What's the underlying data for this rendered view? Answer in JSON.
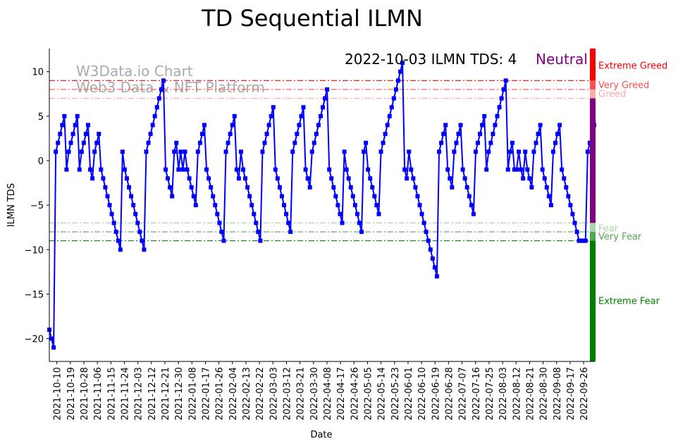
{
  "chart_data": {
    "type": "line",
    "title": "TD Sequential ILMN",
    "xlabel": "Date",
    "ylabel": "ILMN TDS",
    "ylim": [
      -22.6,
      12.6
    ],
    "x_start": "2021-10-05",
    "x_end": "2022-10-03",
    "yticks": [
      10,
      5,
      0,
      -5,
      -10,
      -15,
      -20
    ],
    "xticks": [
      "2021-10-10",
      "2021-10-19",
      "2021-10-28",
      "2021-11-06",
      "2021-11-15",
      "2021-11-24",
      "2021-12-03",
      "2021-12-12",
      "2021-12-21",
      "2021-12-30",
      "2022-01-08",
      "2022-01-17",
      "2022-01-26",
      "2022-02-04",
      "2022-02-13",
      "2022-02-22",
      "2022-03-03",
      "2022-03-12",
      "2022-03-21",
      "2022-03-30",
      "2022-04-08",
      "2022-04-17",
      "2022-04-26",
      "2022-05-05",
      "2022-05-14",
      "2022-05-23",
      "2022-06-01",
      "2022-06-10",
      "2022-06-19",
      "2022-06-28",
      "2022-07-07",
      "2022-07-16",
      "2022-07-25",
      "2022-08-03",
      "2022-08-12",
      "2022-08-21",
      "2022-08-30",
      "2022-09-08",
      "2022-09-17",
      "2022-09-26"
    ],
    "series": [
      {
        "name": "ILMN TDS",
        "color": "#0000ff",
        "values": [
          -19,
          -20,
          -21,
          1,
          2,
          3,
          4,
          5,
          -1,
          1,
          2,
          3,
          4,
          5,
          -1,
          1,
          2,
          3,
          4,
          -1,
          -2,
          1,
          2,
          3,
          -1,
          -2,
          -3,
          -4,
          -5,
          -6,
          -7,
          -8,
          -9,
          -10,
          1,
          -1,
          -2,
          -3,
          -4,
          -5,
          -6,
          -7,
          -8,
          -9,
          -10,
          1,
          2,
          3,
          4,
          5,
          6,
          7,
          8,
          9,
          -1,
          -2,
          -3,
          -4,
          1,
          2,
          -1,
          1,
          -1,
          1,
          -1,
          -2,
          -3,
          -4,
          -5,
          1,
          2,
          3,
          4,
          -1,
          -2,
          -3,
          -4,
          -5,
          -6,
          -7,
          -8,
          -9,
          1,
          2,
          3,
          4,
          5,
          -1,
          -2,
          1,
          -1,
          -2,
          -3,
          -4,
          -5,
          -6,
          -7,
          -8,
          -9,
          1,
          2,
          3,
          4,
          5,
          6,
          -1,
          -2,
          -3,
          -4,
          -5,
          -6,
          -7,
          -8,
          1,
          2,
          3,
          4,
          5,
          6,
          -1,
          -2,
          -3,
          1,
          2,
          3,
          4,
          5,
          6,
          7,
          8,
          -1,
          -2,
          -3,
          -4,
          -5,
          -6,
          -7,
          1,
          -1,
          -2,
          -3,
          -4,
          -5,
          -6,
          -7,
          -8,
          1,
          2,
          -1,
          -2,
          -3,
          -4,
          -5,
          -6,
          1,
          2,
          3,
          4,
          5,
          6,
          7,
          8,
          9,
          10,
          11,
          -1,
          -2,
          1,
          -1,
          -2,
          -3,
          -4,
          -5,
          -6,
          -7,
          -8,
          -9,
          -10,
          -11,
          -12,
          -13,
          1,
          2,
          3,
          4,
          -1,
          -2,
          -3,
          1,
          2,
          3,
          4,
          -1,
          -2,
          -3,
          -4,
          -5,
          -6,
          1,
          2,
          3,
          4,
          5,
          -1,
          1,
          2,
          3,
          4,
          5,
          6,
          7,
          8,
          9,
          -1,
          1,
          2,
          -1,
          -1,
          1,
          -1,
          -2,
          1,
          -1,
          -2,
          -3,
          1,
          2,
          3,
          4,
          -1,
          -2,
          -3,
          -4,
          -5,
          1,
          2,
          3,
          4,
          -1,
          -2,
          -3,
          -4,
          -5,
          -6,
          -7,
          -8,
          -9,
          -9,
          -9,
          -9,
          1,
          2,
          3,
          4
        ]
      }
    ],
    "thresholds": [
      {
        "label": "Extreme Greed",
        "value": 9,
        "color": "#ff0000"
      },
      {
        "label": "Very Greed",
        "value": 8,
        "color": "#ff5050"
      },
      {
        "label": "Greed",
        "value": 7,
        "color": "#ffaaaa"
      },
      {
        "label": "Fear",
        "value": -7,
        "color": "#a8d8a8"
      },
      {
        "label": "Very Fear",
        "value": -8,
        "color": "#50a850"
      },
      {
        "label": "Extreme Fear",
        "value": -9,
        "color": "#008000"
      }
    ],
    "neutral_color": "#800080",
    "annotation": {
      "text": "2022-10-03 ILMN TDS: 4",
      "state": "Neutral"
    },
    "watermark": [
      "W3Data.io Chart",
      "Web3 Data & NFT Platform"
    ],
    "grid": false,
    "legend": "none"
  }
}
